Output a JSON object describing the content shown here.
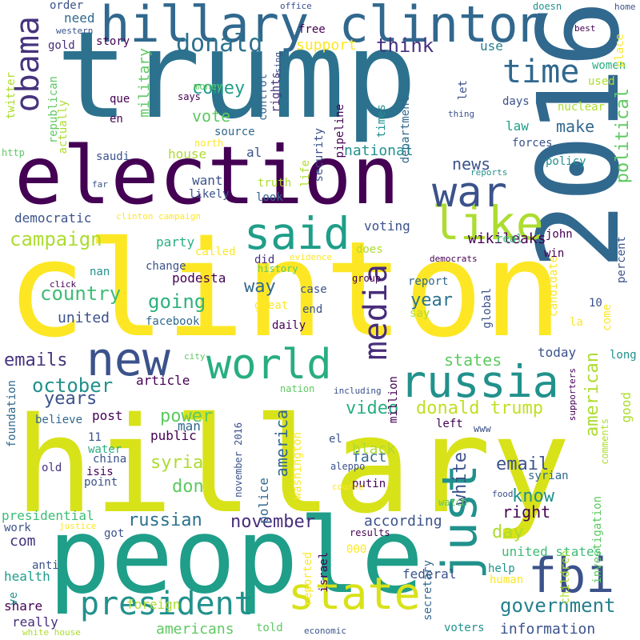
{
  "palette": {
    "dark_purple": "#440154",
    "indigo": "#3b528b",
    "blue": "#2c728e",
    "teal": "#21918c",
    "green": "#28ae80",
    "lime": "#5ec962",
    "yellowgreen": "#addc30",
    "yellow": "#fde725"
  },
  "words": [
    {
      "text": "clinton",
      "color": "#fde725"
    },
    {
      "text": "hillary",
      "color": "#d8e219"
    },
    {
      "text": "trump",
      "color": "#2c728e"
    },
    {
      "text": "people",
      "color": "#1f9e89"
    },
    {
      "text": "election",
      "color": "#440154"
    },
    {
      "text": "2016",
      "color": "#31688e"
    },
    {
      "text": "hillary clinton",
      "color": "#31688e"
    },
    {
      "text": "new",
      "color": "#3b528b"
    },
    {
      "text": "world",
      "color": "#28ae80"
    },
    {
      "text": "said",
      "color": "#1f9e89"
    },
    {
      "text": "like",
      "color": "#addc30"
    },
    {
      "text": "war",
      "color": "#3b528b"
    },
    {
      "text": "state",
      "color": "#d8e219"
    },
    {
      "text": "just",
      "color": "#21918c"
    },
    {
      "text": "fbi",
      "color": "#3b528b"
    },
    {
      "text": "russia",
      "color": "#21918c"
    },
    {
      "text": "obama",
      "color": "#46337e"
    },
    {
      "text": "president",
      "color": "#21918c"
    },
    {
      "text": "media",
      "color": "#472d7b"
    },
    {
      "text": "time",
      "color": "#31688e"
    },
    {
      "text": "donald",
      "color": "#2c728e"
    },
    {
      "text": "think",
      "color": "#46327e"
    },
    {
      "text": "government",
      "color": "#27808e"
    },
    {
      "text": "campaign",
      "color": "#addc30"
    },
    {
      "text": "emails",
      "color": "#46327e"
    },
    {
      "text": "donald trump",
      "color": "#c2df23"
    },
    {
      "text": "october",
      "color": "#21918c"
    },
    {
      "text": "country",
      "color": "#3dbc74"
    },
    {
      "text": "going",
      "color": "#2db27d"
    },
    {
      "text": "years",
      "color": "#3b528b"
    },
    {
      "text": "american",
      "color": "#addc30"
    },
    {
      "text": "military",
      "color": "#5ec962"
    },
    {
      "text": "political",
      "color": "#5ec962"
    },
    {
      "text": "make",
      "color": "#31688e"
    },
    {
      "text": "comey",
      "color": "#1f9e89"
    },
    {
      "text": "vote",
      "color": "#5ec962"
    },
    {
      "text": "news",
      "color": "#3b528b"
    },
    {
      "text": "video",
      "color": "#28ae80"
    },
    {
      "text": "power",
      "color": "#5ec962"
    },
    {
      "text": "email",
      "color": "#3b528b"
    },
    {
      "text": "syria",
      "color": "#addc30"
    },
    {
      "text": "don",
      "color": "#5ec962"
    },
    {
      "text": "white",
      "color": "#3b528b"
    },
    {
      "text": "know",
      "color": "#21918c"
    },
    {
      "text": "russian",
      "color": "#2c728e"
    },
    {
      "text": "november",
      "color": "#472d7b"
    },
    {
      "text": "united",
      "color": "#3b528b"
    },
    {
      "text": "way",
      "color": "#31688e"
    },
    {
      "text": "year",
      "color": "#2c728e"
    },
    {
      "text": "america",
      "color": "#31688e"
    },
    {
      "text": "right",
      "color": "#440154"
    },
    {
      "text": "day",
      "color": "#addc30"
    },
    {
      "text": "states",
      "color": "#5ec962"
    },
    {
      "text": "information",
      "color": "#3b528b"
    },
    {
      "text": "americans",
      "color": "#5ec962"
    },
    {
      "text": "wikileaks",
      "color": "#440154"
    },
    {
      "text": "national",
      "color": "#21918c"
    },
    {
      "text": "house",
      "color": "#addc30"
    },
    {
      "text": "support",
      "color": "#fde725"
    },
    {
      "text": "need",
      "color": "#31688e"
    },
    {
      "text": "use",
      "color": "#27808e"
    },
    {
      "text": "law",
      "color": "#1f9e89"
    },
    {
      "text": "want",
      "color": "#3b528b"
    },
    {
      "text": "voting",
      "color": "#3b528b"
    },
    {
      "text": "democratic",
      "color": "#3b528b"
    },
    {
      "text": "party",
      "color": "#28ae80"
    },
    {
      "text": "podesta",
      "color": "#440154"
    },
    {
      "text": "facebook",
      "color": "#31688e"
    },
    {
      "text": "com",
      "color": "#46327e"
    },
    {
      "text": "according",
      "color": "#3b528b"
    },
    {
      "text": "fact",
      "color": "#31688e"
    },
    {
      "text": "black",
      "color": "#addc30"
    },
    {
      "text": "post",
      "color": "#440154"
    },
    {
      "text": "article",
      "color": "#440154"
    },
    {
      "text": "today",
      "color": "#3b528b"
    },
    {
      "text": "good",
      "color": "#addc30"
    },
    {
      "text": "long",
      "color": "#21918c"
    },
    {
      "text": "public",
      "color": "#440154"
    },
    {
      "text": "man",
      "color": "#31688e"
    },
    {
      "text": "united states",
      "color": "#3dbc74"
    },
    {
      "text": "federal",
      "color": "#3b528b"
    },
    {
      "text": "share",
      "color": "#440154"
    },
    {
      "text": "health",
      "color": "#1f9e89"
    },
    {
      "text": "work",
      "color": "#3b528b"
    },
    {
      "text": "really",
      "color": "#472d7b"
    },
    {
      "text": "foreign",
      "color": "#addc30"
    },
    {
      "text": "told",
      "color": "#5ec962"
    },
    {
      "text": "voters",
      "color": "#21918c"
    },
    {
      "text": "presidential",
      "color": "#3dbc74"
    },
    {
      "text": "police",
      "color": "#31688e"
    },
    {
      "text": "isis",
      "color": "#440154"
    },
    {
      "text": "syrian",
      "color": "#31688e"
    },
    {
      "text": "putin",
      "color": "#440154"
    },
    {
      "text": "called",
      "color": "#fde725"
    },
    {
      "text": "did",
      "color": "#46327e"
    },
    {
      "text": "does",
      "color": "#addc30"
    },
    {
      "text": "real",
      "color": "#3dbc74"
    },
    {
      "text": "truth",
      "color": "#addc30"
    },
    {
      "text": "look",
      "color": "#31688e"
    },
    {
      "text": "life",
      "color": "#addc30"
    },
    {
      "text": "security",
      "color": "#3b528b"
    },
    {
      "text": "pipeline",
      "color": "#440154"
    },
    {
      "text": "rights",
      "color": "#46327e"
    },
    {
      "text": "control",
      "color": "#31688e"
    },
    {
      "text": "department",
      "color": "#31688e"
    },
    {
      "text": "times",
      "color": "#21918c"
    },
    {
      "text": "forces",
      "color": "#3b528b"
    },
    {
      "text": "policy",
      "color": "#21918c"
    },
    {
      "text": "nuclear",
      "color": "#addc30"
    },
    {
      "text": "used",
      "color": "#addc30"
    },
    {
      "text": "women",
      "color": "#28ae80"
    },
    {
      "text": "source",
      "color": "#31688e"
    },
    {
      "text": "money",
      "color": "#5ec962"
    },
    {
      "text": "says",
      "color": "#440154"
    },
    {
      "text": "al",
      "color": "#3b528b"
    },
    {
      "text": "change",
      "color": "#3b528b"
    },
    {
      "text": "history",
      "color": "#5ec962"
    },
    {
      "text": "case",
      "color": "#3b528b"
    },
    {
      "text": "end",
      "color": "#3b528b"
    },
    {
      "text": "great",
      "color": "#fde725"
    },
    {
      "text": "report",
      "color": "#31688e"
    },
    {
      "text": "candidate",
      "color": "#fde725"
    },
    {
      "text": "global",
      "color": "#3b528b"
    },
    {
      "text": "say",
      "color": "#addc30"
    },
    {
      "text": "percent",
      "color": "#3b528b"
    },
    {
      "text": "investigation",
      "color": "#5ec962"
    },
    {
      "text": "children",
      "color": "#addc30"
    },
    {
      "text": "human",
      "color": "#fde725"
    },
    {
      "text": "help",
      "color": "#21918c"
    },
    {
      "text": "israel",
      "color": "#440154"
    },
    {
      "text": "reported",
      "color": "#fde725"
    },
    {
      "text": "secretary",
      "color": "#31688e"
    },
    {
      "text": "washington",
      "color": "#fde725"
    },
    {
      "text": "november 2016",
      "color": "#3b528b"
    },
    {
      "text": "china",
      "color": "#3b528b"
    },
    {
      "text": "point",
      "color": "#3b528b"
    },
    {
      "text": "water",
      "color": "#28ae80"
    },
    {
      "text": "old",
      "color": "#46327e"
    },
    {
      "text": "11",
      "color": "#3b528b"
    },
    {
      "text": "believe",
      "color": "#31688e"
    },
    {
      "text": "anti",
      "color": "#3b528b"
    },
    {
      "text": "ve",
      "color": "#21918c"
    },
    {
      "text": "foundation",
      "color": "#31688e"
    },
    {
      "text": "el",
      "color": "#3b528b"
    },
    {
      "text": "left",
      "color": "#440154"
    },
    {
      "text": "daily",
      "color": "#440154"
    },
    {
      "text": "10",
      "color": "#3b528b"
    },
    {
      "text": "la",
      "color": "#fde725"
    },
    {
      "text": "come",
      "color": "#fde725"
    },
    {
      "text": "win",
      "color": "#440154"
    },
    {
      "text": "john",
      "color": "#440154"
    },
    {
      "text": "democrats",
      "color": "#440154"
    },
    {
      "text": "group",
      "color": "#440154"
    },
    {
      "text": "evidence",
      "color": "#fde725"
    },
    {
      "text": "clinton campaign",
      "color": "#fde725"
    },
    {
      "text": "nan",
      "color": "#21918c"
    },
    {
      "text": "click",
      "color": "#440154"
    },
    {
      "text": "far",
      "color": "#3b528b"
    },
    {
      "text": "likely",
      "color": "#3b528b"
    },
    {
      "text": "http",
      "color": "#5ec962"
    },
    {
      "text": "saudi",
      "color": "#3b528b"
    },
    {
      "text": "north",
      "color": "#fde725"
    },
    {
      "text": "republican",
      "color": "#5ec962"
    },
    {
      "text": "actually",
      "color": "#addc30"
    },
    {
      "text": "en",
      "color": "#440154"
    },
    {
      "text": "que",
      "color": "#440154"
    },
    {
      "text": "twitter",
      "color": "#addc30"
    },
    {
      "text": "gold",
      "color": "#472d7b"
    },
    {
      "text": "story",
      "color": "#440154"
    },
    {
      "text": "order",
      "color": "#3b528b"
    },
    {
      "text": "western",
      "color": "#3b528b"
    },
    {
      "text": "free",
      "color": "#440154"
    },
    {
      "text": "office",
      "color": "#3b528b"
    },
    {
      "text": "using",
      "color": "#3b528b"
    },
    {
      "text": "doesn",
      "color": "#21918c"
    },
    {
      "text": "home",
      "color": "#3b528b"
    },
    {
      "text": "best",
      "color": "#440154"
    },
    {
      "text": "place",
      "color": "#fde725"
    },
    {
      "text": "let",
      "color": "#3b528b"
    },
    {
      "text": "thing",
      "color": "#3b528b"
    },
    {
      "text": "days",
      "color": "#3b528b"
    },
    {
      "text": "reports",
      "color": "#21918c"
    },
    {
      "text": "city",
      "color": "#5ec962"
    },
    {
      "text": "nation",
      "color": "#5ec962"
    },
    {
      "text": "including",
      "color": "#3b528b"
    },
    {
      "text": "million",
      "color": "#440154"
    },
    {
      "text": "www",
      "color": "#3b528b"
    },
    {
      "text": "supporters",
      "color": "#440154"
    },
    {
      "text": "comments",
      "color": "#addc30"
    },
    {
      "text": "aleppo",
      "color": "#3b528b"
    },
    {
      "text": "course",
      "color": "#fde725"
    },
    {
      "text": "food",
      "color": "#3b528b"
    },
    {
      "text": "watch",
      "color": "#5ec962"
    },
    {
      "text": "justice",
      "color": "#fde725"
    },
    {
      "text": "got",
      "color": "#3b528b"
    },
    {
      "text": "results",
      "color": "#440154"
    },
    {
      "text": "000",
      "color": "#fde725"
    },
    {
      "text": "white house",
      "color": "#addc30"
    },
    {
      "text": "economic",
      "color": "#3b528b"
    }
  ]
}
